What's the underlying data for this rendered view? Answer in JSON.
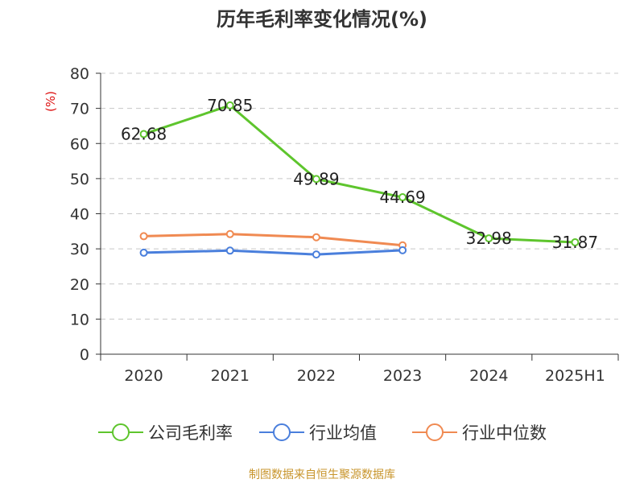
{
  "title": "历年毛利率变化情况(%)",
  "source": "制图数据来自恒生聚源数据库",
  "chart_data": {
    "type": "line",
    "title": "历年毛利率变化情况(%)",
    "ylabel": "(%)",
    "xlabel": "",
    "ylim": [
      0,
      80
    ],
    "yticks": [
      0,
      10,
      20,
      30,
      40,
      50,
      60,
      70,
      80
    ],
    "categories": [
      "2020",
      "2021",
      "2022",
      "2023",
      "2024",
      "2025H1"
    ],
    "grid": true,
    "legend_position": "bottom",
    "series": [
      {
        "name": "公司毛利率",
        "color": "#5ec52d",
        "show_labels": true,
        "values": [
          62.68,
          70.85,
          49.89,
          44.69,
          32.98,
          31.87
        ]
      },
      {
        "name": "行业均值",
        "color": "#4a7fdc",
        "show_labels": false,
        "values": [
          28.9,
          29.5,
          28.4,
          29.6,
          null,
          null
        ]
      },
      {
        "name": "行业中位数",
        "color": "#f08a52",
        "show_labels": false,
        "values": [
          33.6,
          34.2,
          33.3,
          31.0,
          null,
          null
        ]
      }
    ]
  }
}
